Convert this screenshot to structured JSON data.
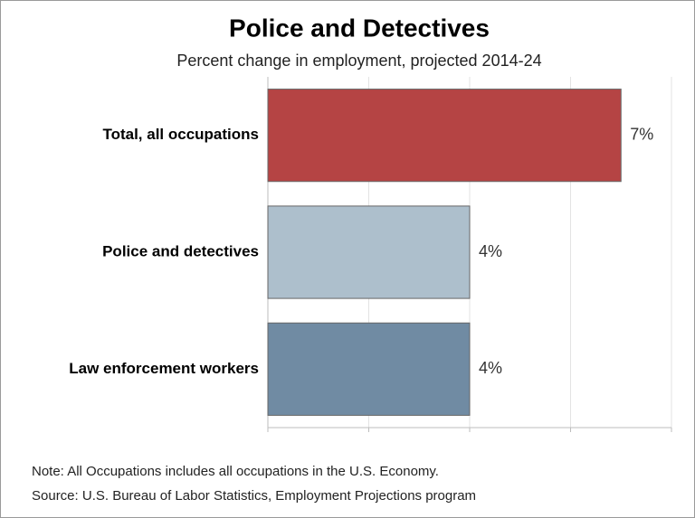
{
  "chart_data": {
    "type": "hbar",
    "title": "Police and Detectives",
    "subtitle": "Percent change in employment, projected 2014-24",
    "categories": [
      "Total, all occupations",
      "Police and detectives",
      "Law enforcement workers"
    ],
    "values": [
      7,
      4,
      4
    ],
    "value_labels": [
      "7%",
      "4%",
      "4%"
    ],
    "colors": [
      "#b54444",
      "#adbfcc",
      "#708ba3"
    ],
    "xlim": [
      0,
      8
    ],
    "xticks": [
      0,
      2,
      4,
      6,
      8
    ],
    "grid": true,
    "notes": [
      "Note: All Occupations includes all occupations in the U.S. Economy.",
      "Source: U.S. Bureau of Labor Statistics, Employment Projections program"
    ]
  }
}
